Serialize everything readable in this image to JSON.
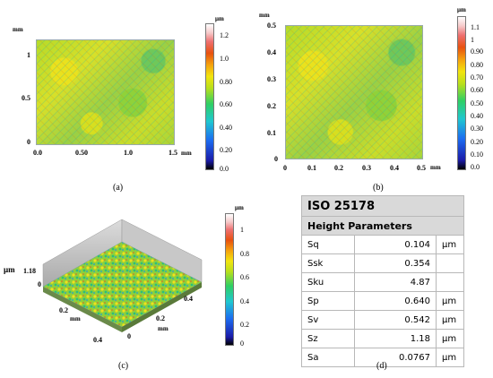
{
  "panel_a": {
    "y_unit": "mm",
    "x_unit": "mm",
    "y_ticks": [
      "1",
      "0.5",
      "0"
    ],
    "x_ticks": [
      "0.0",
      "0.50",
      "1.0",
      "1.5"
    ],
    "colorbar_unit": "μm",
    "colorbar_ticks": [
      "1.2",
      "1.0",
      "0.80",
      "0.60",
      "0.40",
      "0.20",
      "0.0"
    ],
    "caption": "(a)"
  },
  "panel_b": {
    "y_unit": "mm",
    "x_unit": "mm",
    "y_ticks": [
      "0.5",
      "0.4",
      "0.3",
      "0.2",
      "0.1",
      "0"
    ],
    "x_ticks": [
      "0",
      "0.1",
      "0.2",
      "0.3",
      "0.4",
      "0.5"
    ],
    "colorbar_unit": "μm",
    "colorbar_ticks": [
      "1.1",
      "1",
      "0.90",
      "0.80",
      "0.70",
      "0.60",
      "0.50",
      "0.40",
      "0.30",
      "0.20",
      "0.10",
      "0.0"
    ],
    "caption": "(b)"
  },
  "panel_c": {
    "z_unit": "μm",
    "z_max": "1.18",
    "left_axis_unit": "mm",
    "right_axis_unit": "mm",
    "left_axis_ticks": [
      "0",
      "0.2",
      "0.4"
    ],
    "right_axis_ticks": [
      "0",
      "0.2",
      "0.4"
    ],
    "colorbar_unit": "μm",
    "colorbar_ticks": [
      "1",
      "0.8",
      "0.6",
      "0.4",
      "0.2",
      "0"
    ],
    "caption": "(c)"
  },
  "panel_d": {
    "title": "ISO 25178",
    "subtitle": "Height Parameters",
    "rows": [
      {
        "name": "Sq",
        "value": "0.104",
        "unit": "μm"
      },
      {
        "name": "Ssk",
        "value": "0.354",
        "unit": ""
      },
      {
        "name": "Sku",
        "value": "4.87",
        "unit": ""
      },
      {
        "name": "Sp",
        "value": "0.640",
        "unit": "μm"
      },
      {
        "name": "Sv",
        "value": "0.542",
        "unit": "μm"
      },
      {
        "name": "Sz",
        "value": "1.18",
        "unit": "μm"
      },
      {
        "name": "Sa",
        "value": "0.0767",
        "unit": "μm"
      }
    ],
    "caption": "(d)"
  },
  "colors": {
    "surface_base": "#c9dd2b",
    "table_header": "#d9d9d9"
  }
}
